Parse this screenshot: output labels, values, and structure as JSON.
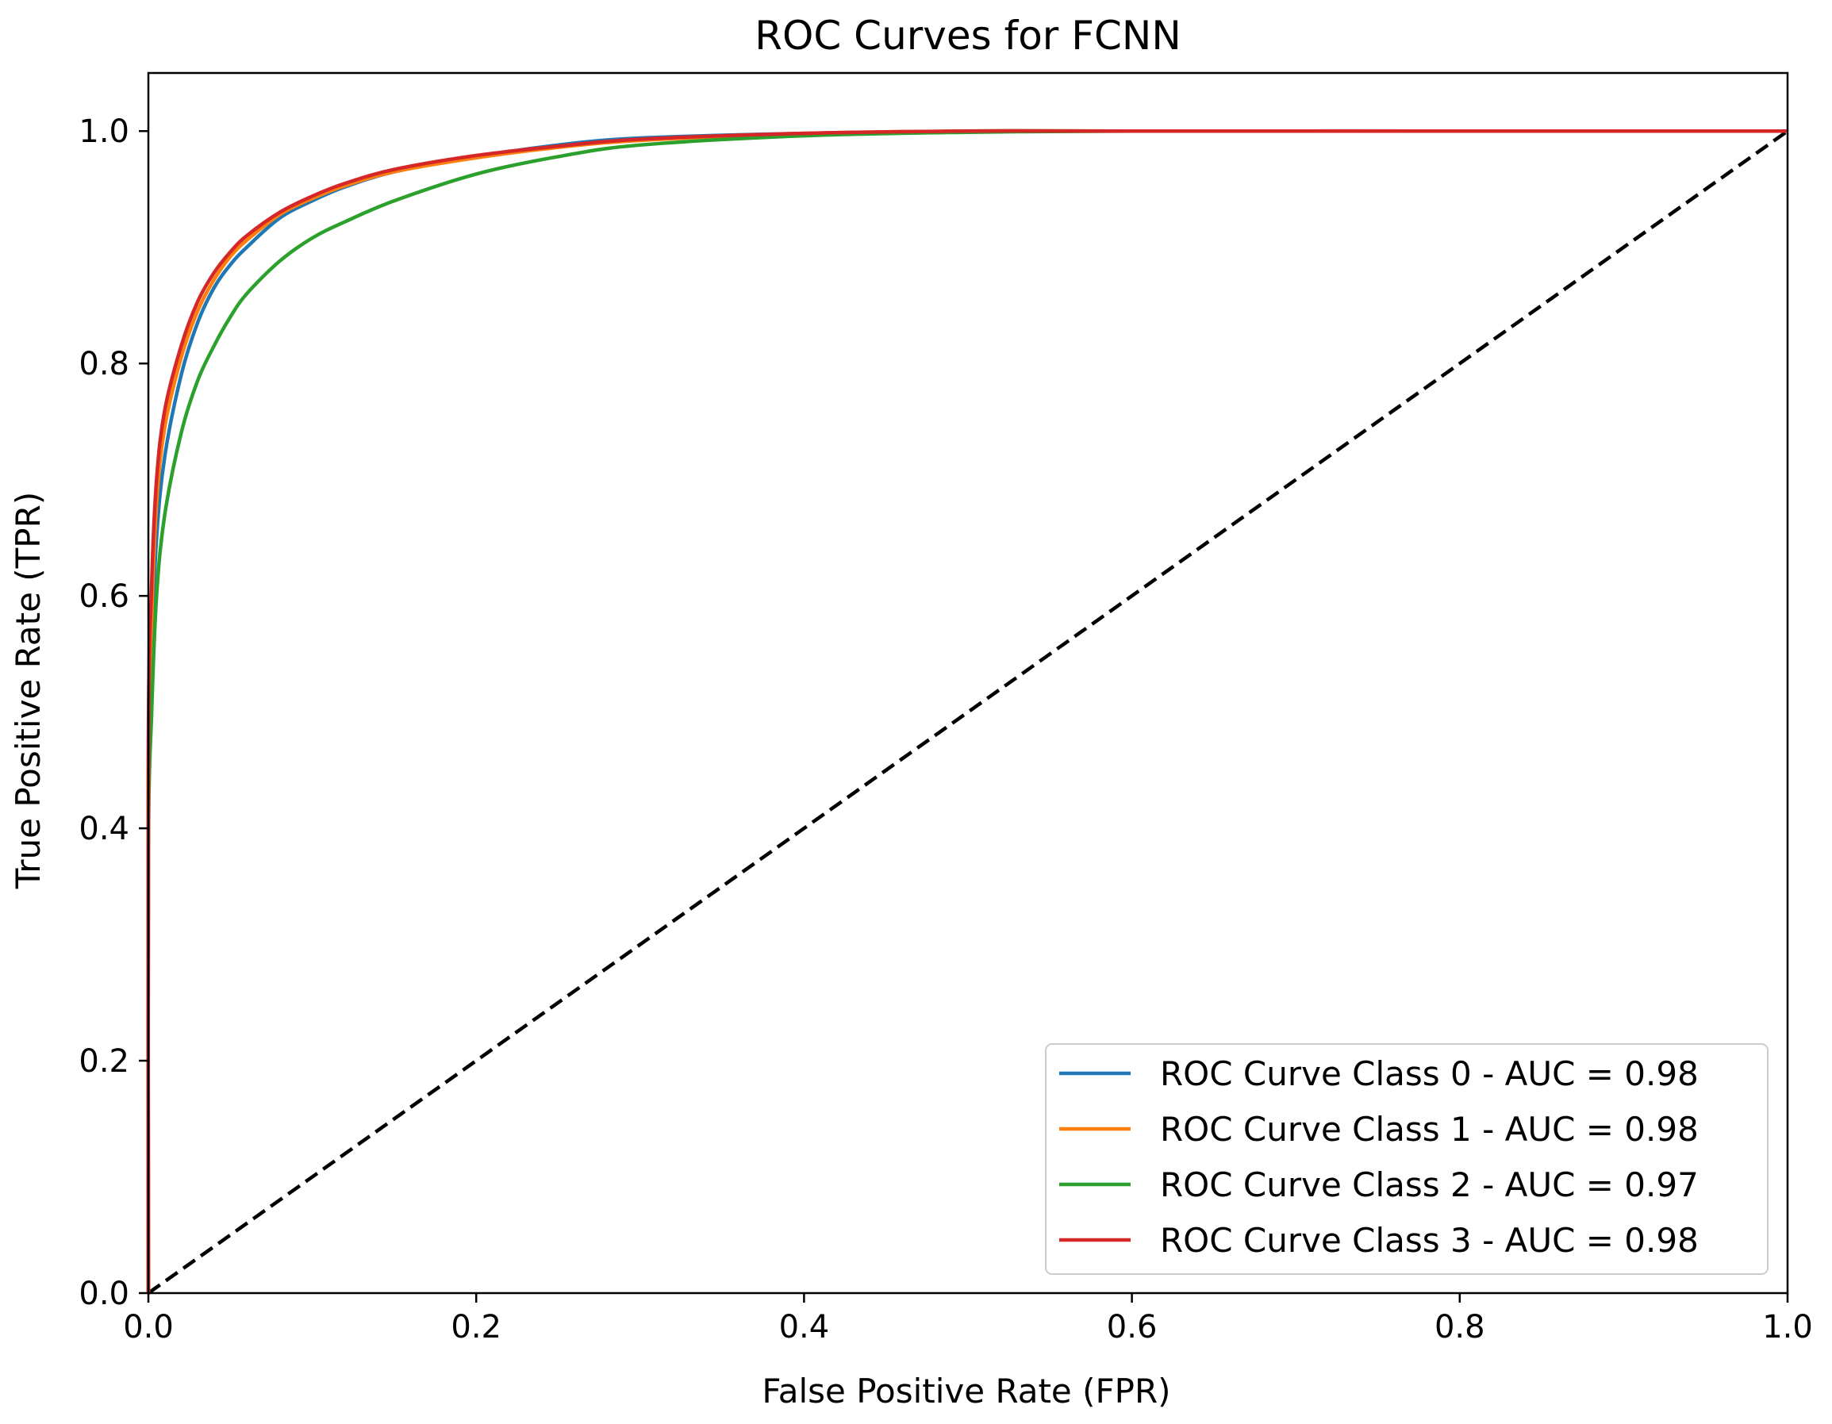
{
  "chart_data": {
    "type": "line",
    "title": "ROC Curves for FCNN",
    "xlabel": "False Positive Rate (FPR)",
    "ylabel": "True Positive Rate (TPR)",
    "xlim": [
      0.0,
      1.0
    ],
    "ylim": [
      0.0,
      1.05
    ],
    "xticks": [
      0.0,
      0.2,
      0.4,
      0.6,
      0.8,
      1.0
    ],
    "yticks": [
      0.0,
      0.2,
      0.4,
      0.6,
      0.8,
      1.0
    ],
    "xtick_labels": [
      "0.0",
      "0.2",
      "0.4",
      "0.6",
      "0.8",
      "1.0"
    ],
    "ytick_labels": [
      "0.0",
      "0.2",
      "0.4",
      "0.6",
      "0.8",
      "1.0"
    ],
    "grid": false,
    "legend_position": "lower-right",
    "series": [
      {
        "name": "ROC Curve Class 0 - AUC = 0.98",
        "color": "#1f77b4",
        "x": [
          0.0,
          0.0,
          0.002,
          0.005,
          0.01,
          0.02,
          0.03,
          0.04,
          0.05,
          0.06,
          0.08,
          0.1,
          0.12,
          0.15,
          0.2,
          0.25,
          0.3,
          0.4,
          0.5,
          0.6,
          0.8,
          1.0
        ],
        "y": [
          0.0,
          0.42,
          0.55,
          0.65,
          0.72,
          0.79,
          0.835,
          0.865,
          0.885,
          0.9,
          0.925,
          0.94,
          0.952,
          0.965,
          0.978,
          0.988,
          0.994,
          0.998,
          1.0,
          1.0,
          1.0,
          1.0
        ]
      },
      {
        "name": "ROC Curve Class 1 - AUC = 0.98",
        "color": "#ff7f0e",
        "x": [
          0.0,
          0.0,
          0.002,
          0.005,
          0.01,
          0.02,
          0.03,
          0.04,
          0.05,
          0.06,
          0.08,
          0.1,
          0.12,
          0.15,
          0.2,
          0.25,
          0.3,
          0.4,
          0.5,
          0.6,
          0.8,
          1.0
        ],
        "y": [
          0.0,
          0.45,
          0.58,
          0.68,
          0.745,
          0.805,
          0.845,
          0.872,
          0.892,
          0.906,
          0.928,
          0.942,
          0.953,
          0.965,
          0.977,
          0.986,
          0.992,
          0.998,
          1.0,
          1.0,
          1.0,
          1.0
        ]
      },
      {
        "name": "ROC Curve Class 2 - AUC = 0.97",
        "color": "#2ca02c",
        "x": [
          0.0,
          0.0,
          0.002,
          0.005,
          0.01,
          0.02,
          0.03,
          0.04,
          0.05,
          0.06,
          0.08,
          0.1,
          0.12,
          0.15,
          0.2,
          0.25,
          0.3,
          0.4,
          0.5,
          0.6,
          0.8,
          1.0
        ],
        "y": [
          0.0,
          0.38,
          0.5,
          0.6,
          0.67,
          0.74,
          0.785,
          0.815,
          0.84,
          0.86,
          0.888,
          0.908,
          0.922,
          0.94,
          0.963,
          0.978,
          0.988,
          0.996,
          0.999,
          1.0,
          1.0,
          1.0
        ]
      },
      {
        "name": "ROC Curve Class 3 - AUC = 0.98",
        "color": "#d62728",
        "x": [
          0.0,
          0.0,
          0.002,
          0.005,
          0.01,
          0.02,
          0.03,
          0.04,
          0.05,
          0.06,
          0.08,
          0.1,
          0.12,
          0.15,
          0.2,
          0.25,
          0.3,
          0.4,
          0.5,
          0.6,
          0.8,
          1.0
        ],
        "y": [
          0.0,
          0.47,
          0.61,
          0.7,
          0.76,
          0.815,
          0.853,
          0.878,
          0.896,
          0.91,
          0.93,
          0.944,
          0.955,
          0.967,
          0.979,
          0.987,
          0.993,
          0.998,
          1.0,
          1.0,
          1.0,
          1.0
        ]
      }
    ],
    "reference_line": {
      "name": "chance",
      "color": "#000000",
      "style": "dashed",
      "x": [
        0.0,
        1.0
      ],
      "y": [
        0.0,
        1.0
      ]
    }
  }
}
